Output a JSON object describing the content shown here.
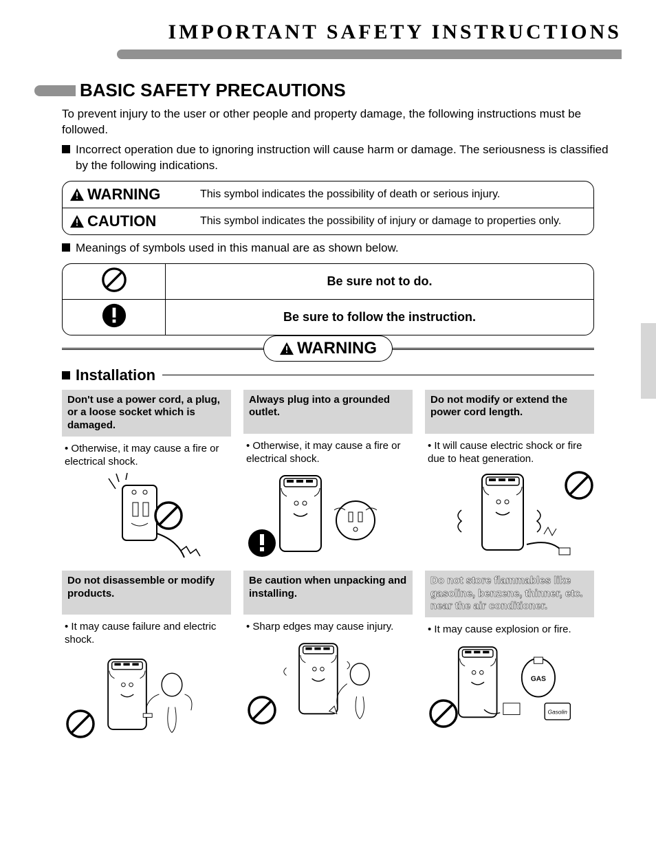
{
  "colors": {
    "gray_bar": "#919191",
    "gray_box": "#d6d6d6",
    "text": "#000000",
    "bg": "#ffffff"
  },
  "typography": {
    "page_title_pt": 30,
    "section_title_pt": 26,
    "body_pt": 17,
    "card_head_pt": 15,
    "warn_label_pt": 22
  },
  "page_title": "IMPORTANT SAFETY INSTRUCTIONS",
  "section_title": "BASIC SAFETY PRECAUTIONS",
  "intro": "To prevent injury to the user or other people and property damage, the following instructions must be followed.",
  "bullet1": "Incorrect operation due to ignoring instruction will cause harm or damage. The seriousness is classified by the following indications.",
  "warn_table": [
    {
      "label": "WARNING",
      "desc": "This symbol indicates the possibility of death or serious injury."
    },
    {
      "label": "CAUTION",
      "desc": "This symbol indicates the possibility of injury or damage to properties only."
    }
  ],
  "bullet2": "Meanings of symbols used in this manual are as shown below.",
  "sym_table": [
    {
      "icon": "prohibit",
      "text": "Be sure not to do."
    },
    {
      "icon": "mandatory",
      "text": "Be sure to follow the instruction."
    }
  ],
  "big_warning": "WARNING",
  "subsection": "Installation",
  "cards": [
    {
      "head": "Don't use a power cord, a plug, or a loose socket which is damaged.",
      "body": "Otherwise, it may cause a fire or electrical shock.",
      "overlay": "prohibit",
      "overlay_pos": "center-right",
      "outlined": false
    },
    {
      "head": "Always plug into a grounded outlet.",
      "body": "Otherwise, it may cause a fire or electrical shock.",
      "overlay": "mandatory",
      "overlay_pos": "bottom-left",
      "outlined": false
    },
    {
      "head": "Do not modify or extend the power cord length.",
      "body": "It will cause electric shock or fire due to heat generation.",
      "overlay": "prohibit",
      "overlay_pos": "top-right",
      "outlined": false
    },
    {
      "head": "Do not disassemble or modify products.",
      "body": "It may cause failure and electric shock.",
      "overlay": "prohibit",
      "overlay_pos": "bottom-left",
      "outlined": false
    },
    {
      "head": "Be caution when unpacking and installing.",
      "body": "Sharp edges may cause injury.",
      "overlay": "prohibit",
      "overlay_pos": "bottom-left",
      "outlined": false
    },
    {
      "head": "Do not store flammables like gasoline, benzene, thinner, etc. near the air conditioner.",
      "body": "It may cause explosion or fire.",
      "overlay": "prohibit",
      "overlay_pos": "bottom-left",
      "outlined": true
    }
  ]
}
